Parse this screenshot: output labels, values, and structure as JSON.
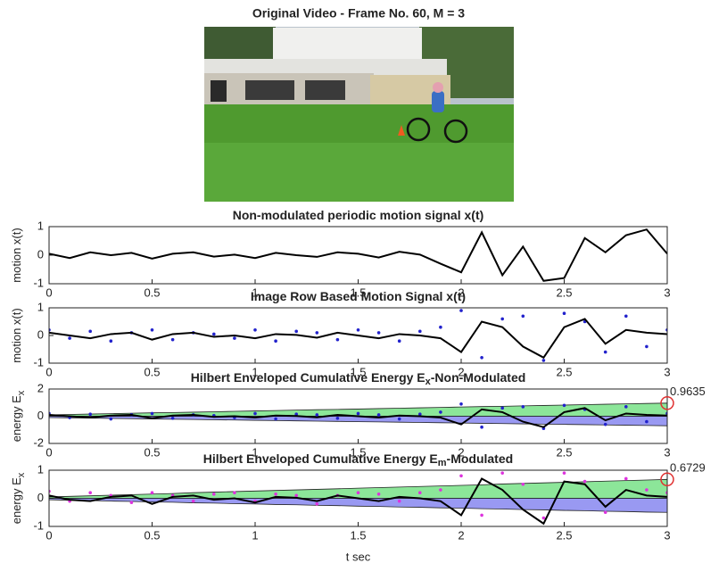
{
  "figure_title": "Original Video - Frame No. 60, M = 3",
  "chart_data": [
    {
      "type": "line",
      "title": "Non-modulated periodic motion signal x(t)",
      "ylabel": "motion x(t)",
      "x": [
        0,
        0.1,
        0.2,
        0.3,
        0.4,
        0.5,
        0.6,
        0.7,
        0.8,
        0.9,
        1,
        1.1,
        1.2,
        1.3,
        1.4,
        1.5,
        1.6,
        1.7,
        1.8,
        1.9,
        2,
        2.1,
        2.2,
        2.3,
        2.4,
        2.5,
        2.6,
        2.7,
        2.8,
        2.9,
        3
      ],
      "series": [
        {
          "style": "line",
          "color": "#000000",
          "values": [
            0.05,
            -0.1,
            0.1,
            0,
            0.08,
            -0.12,
            0.05,
            0.1,
            -0.05,
            0.02,
            -0.1,
            0.08,
            0,
            -0.06,
            0.1,
            0.05,
            -0.08,
            0.12,
            0.02,
            -0.3,
            -0.6,
            0.8,
            -0.7,
            0.3,
            -0.9,
            -0.8,
            0.6,
            0.1,
            0.7,
            0.9,
            0.05
          ]
        }
      ],
      "xlim": [
        0,
        3
      ],
      "ylim": [
        -1,
        1
      ],
      "xticks": [
        0,
        0.5,
        1,
        1.5,
        2,
        2.5,
        3
      ],
      "yticks": [
        -1,
        0,
        1
      ]
    },
    {
      "type": "line",
      "title": "Image Row Based Motion Signal x(t)",
      "ylabel": "motion x(t)",
      "x": [
        0,
        0.1,
        0.2,
        0.3,
        0.4,
        0.5,
        0.6,
        0.7,
        0.8,
        0.9,
        1,
        1.1,
        1.2,
        1.3,
        1.4,
        1.5,
        1.6,
        1.7,
        1.8,
        1.9,
        2,
        2.1,
        2.2,
        2.3,
        2.4,
        2.5,
        2.6,
        2.7,
        2.8,
        2.9,
        3
      ],
      "series": [
        {
          "style": "dots",
          "color": "#2222cc",
          "values": [
            0.2,
            -0.1,
            0.15,
            -0.2,
            0.1,
            0.2,
            -0.15,
            0.1,
            0.05,
            -0.1,
            0.2,
            -0.2,
            0.15,
            0.1,
            -0.15,
            0.2,
            0.1,
            -0.2,
            0.15,
            0.3,
            0.9,
            -0.8,
            0.6,
            0.7,
            -0.9,
            0.8,
            0.5,
            -0.6,
            0.7,
            -0.4,
            0.2
          ]
        },
        {
          "style": "line",
          "color": "#000000",
          "values": [
            0.1,
            0,
            -0.1,
            0.05,
            0.1,
            -0.15,
            0.05,
            0.1,
            -0.05,
            0,
            -0.1,
            0.05,
            0.02,
            -0.08,
            0.1,
            0,
            -0.1,
            0.05,
            0,
            -0.1,
            -0.6,
            0.5,
            0.3,
            -0.4,
            -0.8,
            0.3,
            0.6,
            -0.3,
            0.2,
            0.1,
            0.05
          ]
        }
      ],
      "xlim": [
        0,
        3
      ],
      "ylim": [
        -1,
        1
      ],
      "xticks": [
        0,
        0.5,
        1,
        1.5,
        2,
        2.5,
        3
      ],
      "yticks": [
        -1,
        0,
        1
      ]
    },
    {
      "type": "line",
      "title": "Hilbert Enveloped Cumulative Energy E",
      "title_subscript": "x",
      "title_suffix": "-Non-Modulated",
      "ylabel": "energy E",
      "ylabel_subscript": "x",
      "x": [
        0,
        0.1,
        0.2,
        0.3,
        0.4,
        0.5,
        0.6,
        0.7,
        0.8,
        0.9,
        1,
        1.1,
        1.2,
        1.3,
        1.4,
        1.5,
        1.6,
        1.7,
        1.8,
        1.9,
        2,
        2.1,
        2.2,
        2.3,
        2.4,
        2.5,
        2.6,
        2.7,
        2.8,
        2.9,
        3
      ],
      "series": [
        {
          "style": "band",
          "color": "#66dd77",
          "values": [
            0.1,
            0.13,
            0.16,
            0.19,
            0.22,
            0.25,
            0.27,
            0.3,
            0.33,
            0.36,
            0.39,
            0.42,
            0.45,
            0.48,
            0.5,
            0.53,
            0.56,
            0.59,
            0.62,
            0.65,
            0.68,
            0.71,
            0.73,
            0.76,
            0.79,
            0.82,
            0.85,
            0.88,
            0.91,
            0.94,
            0.9635
          ]
        },
        {
          "style": "band",
          "color": "#7777ee",
          "values": [
            -0.1,
            -0.12,
            -0.14,
            -0.16,
            -0.18,
            -0.2,
            -0.22,
            -0.24,
            -0.26,
            -0.28,
            -0.3,
            -0.32,
            -0.34,
            -0.36,
            -0.38,
            -0.4,
            -0.42,
            -0.44,
            -0.46,
            -0.48,
            -0.5,
            -0.52,
            -0.54,
            -0.56,
            -0.58,
            -0.6,
            -0.62,
            -0.64,
            -0.66,
            -0.68,
            -0.7
          ]
        },
        {
          "style": "dots",
          "color": "#2222cc",
          "values": [
            0.2,
            -0.1,
            0.15,
            -0.2,
            0.1,
            0.2,
            -0.15,
            0.1,
            0.05,
            -0.1,
            0.2,
            -0.2,
            0.15,
            0.1,
            -0.15,
            0.2,
            0.1,
            -0.2,
            0.15,
            0.3,
            0.9,
            -0.8,
            0.6,
            0.7,
            -0.9,
            0.8,
            0.5,
            -0.6,
            0.7,
            -0.4,
            0.2
          ]
        },
        {
          "style": "line",
          "color": "#000000",
          "values": [
            0.1,
            0,
            -0.1,
            0.05,
            0.1,
            -0.15,
            0.05,
            0.1,
            -0.05,
            0,
            -0.1,
            0.05,
            0.02,
            -0.08,
            0.1,
            0,
            -0.1,
            0.05,
            0,
            -0.1,
            -0.6,
            0.5,
            0.3,
            -0.4,
            -0.8,
            0.3,
            0.6,
            -0.3,
            0.2,
            0.1,
            0.05
          ]
        }
      ],
      "annotation": {
        "x": 3,
        "value": 0.9635
      },
      "xlim": [
        0,
        3
      ],
      "ylim": [
        -2,
        2
      ],
      "xticks": [
        0,
        0.5,
        1,
        1.5,
        2,
        2.5,
        3
      ],
      "yticks": [
        -2,
        0,
        2
      ]
    },
    {
      "type": "line",
      "title": "Hilbert Enveloped Cumulative Energy E",
      "title_subscript": "m",
      "title_suffix": "-Modulated",
      "ylabel": "energy E",
      "ylabel_subscript": "x",
      "xlabel": "t sec",
      "x": [
        0,
        0.1,
        0.2,
        0.3,
        0.4,
        0.5,
        0.6,
        0.7,
        0.8,
        0.9,
        1,
        1.1,
        1.2,
        1.3,
        1.4,
        1.5,
        1.6,
        1.7,
        1.8,
        1.9,
        2,
        2.1,
        2.2,
        2.3,
        2.4,
        2.5,
        2.6,
        2.7,
        2.8,
        2.9,
        3
      ],
      "series": [
        {
          "style": "band",
          "color": "#66dd77",
          "values": [
            0.05,
            0.07,
            0.09,
            0.11,
            0.13,
            0.15,
            0.17,
            0.2,
            0.22,
            0.24,
            0.26,
            0.28,
            0.3,
            0.32,
            0.34,
            0.36,
            0.38,
            0.4,
            0.42,
            0.44,
            0.46,
            0.48,
            0.51,
            0.53,
            0.55,
            0.57,
            0.59,
            0.61,
            0.63,
            0.65,
            0.6729
          ]
        },
        {
          "style": "band",
          "color": "#7777ee",
          "values": [
            -0.05,
            -0.07,
            -0.08,
            -0.1,
            -0.11,
            -0.13,
            -0.14,
            -0.16,
            -0.17,
            -0.19,
            -0.2,
            -0.22,
            -0.23,
            -0.25,
            -0.26,
            -0.28,
            -0.29,
            -0.31,
            -0.32,
            -0.34,
            -0.35,
            -0.37,
            -0.38,
            -0.4,
            -0.41,
            -0.43,
            -0.44,
            -0.46,
            -0.47,
            -0.49,
            -0.5
          ]
        },
        {
          "style": "dots",
          "color": "#dd33dd",
          "values": [
            0.25,
            -0.1,
            0.2,
            0.1,
            -0.15,
            0.2,
            0.1,
            -0.1,
            0.15,
            0.2,
            -0.1,
            0.15,
            0.1,
            -0.2,
            0.1,
            0.2,
            0.15,
            -0.1,
            0.2,
            0.3,
            0.8,
            -0.6,
            0.9,
            0.5,
            -0.7,
            0.9,
            0.6,
            -0.5,
            0.7,
            0.3,
            0.2
          ]
        },
        {
          "style": "line",
          "color": "#000000",
          "values": [
            0.1,
            -0.05,
            -0.1,
            0.05,
            0.1,
            -0.2,
            0.05,
            0.1,
            -0.05,
            0,
            -0.15,
            0.05,
            0.02,
            -0.1,
            0.1,
            0,
            -0.1,
            0.05,
            0,
            -0.1,
            -0.6,
            0.7,
            0.3,
            -0.4,
            -0.9,
            0.6,
            0.5,
            -0.3,
            0.3,
            0.1,
            0.05
          ]
        }
      ],
      "annotation": {
        "x": 3,
        "value": 0.6729
      },
      "xlim": [
        0,
        3
      ],
      "ylim": [
        -1,
        1
      ],
      "xticks": [
        0,
        0.5,
        1,
        1.5,
        2,
        2.5,
        3
      ],
      "yticks": [
        -1,
        0,
        1
      ]
    }
  ]
}
